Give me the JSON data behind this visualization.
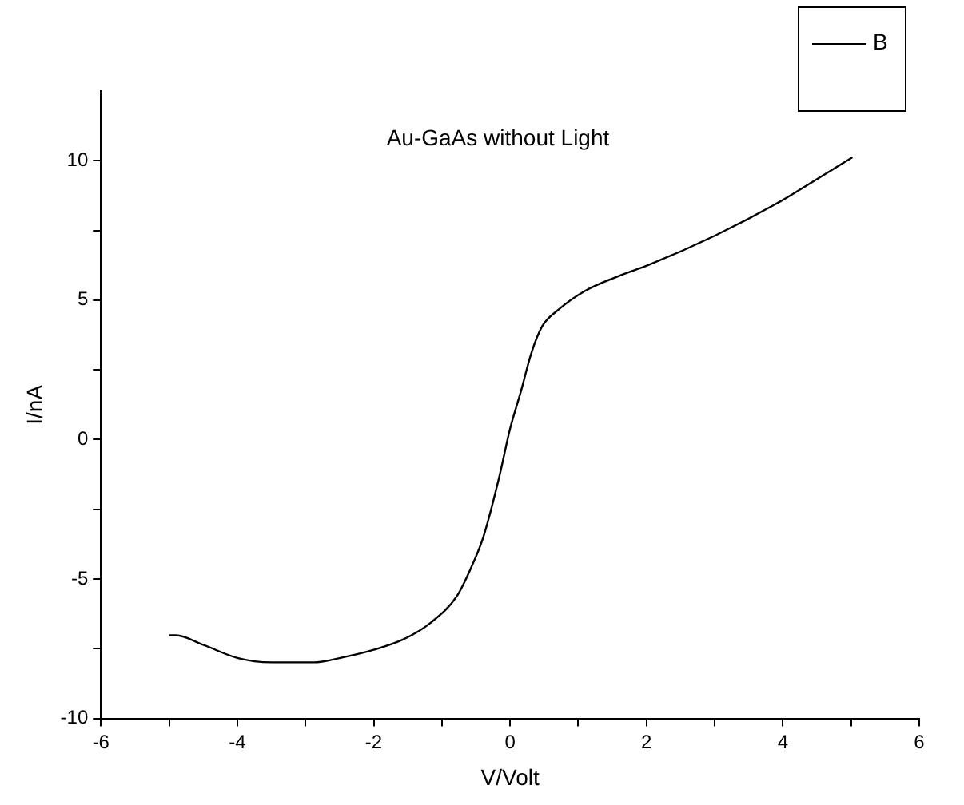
{
  "chart_data": {
    "type": "line",
    "title": "Au-GaAs without Light",
    "xlabel": "V/Volt",
    "ylabel": "I/nA",
    "xlim": [
      -6,
      6
    ],
    "xticks": [
      -6,
      {
        "value": -5,
        "label": null
      },
      -4,
      {
        "value": -3,
        "label": null
      },
      -2,
      {
        "value": -1,
        "label": null
      },
      0,
      {
        "value": 1,
        "label": null
      },
      2,
      {
        "value": 3,
        "label": null
      },
      4,
      {
        "value": 5,
        "label": null
      },
      6
    ],
    "ylim": [
      -10,
      12.5
    ],
    "yticks": [
      -10,
      {
        "value": -7.5,
        "label": null
      },
      -5,
      {
        "value": -2.5,
        "label": null
      },
      0,
      {
        "value": 2.5,
        "label": null
      },
      5,
      {
        "value": 7.5,
        "label": null
      },
      10
    ],
    "grid": false,
    "legend": "top right",
    "marker": "none",
    "line_style": "solid",
    "series": [
      {
        "name": "B",
        "color": "#000000",
        "x": [
          -5.0,
          -4.9,
          -4.51,
          -4.0,
          -3.5,
          -2.88,
          -2.49,
          -2.0,
          -1.56,
          -1.17,
          -0.78,
          -0.58,
          -0.39,
          -0.16,
          0,
          0.16,
          0.31,
          0.47,
          0.7,
          1.09,
          1.63,
          2.02,
          3.0,
          3.97,
          4.44,
          5.02
        ],
        "values": [
          -7.02,
          -7.02,
          -7.35,
          -7.83,
          -7.99,
          -7.99,
          -7.83,
          -7.54,
          -7.16,
          -6.58,
          -5.61,
          -4.64,
          -3.48,
          -1.35,
          0.39,
          1.74,
          3.09,
          4.06,
          4.64,
          5.32,
          5.9,
          6.25,
          7.31,
          8.55,
          9.25,
          10.12
        ]
      }
    ]
  }
}
